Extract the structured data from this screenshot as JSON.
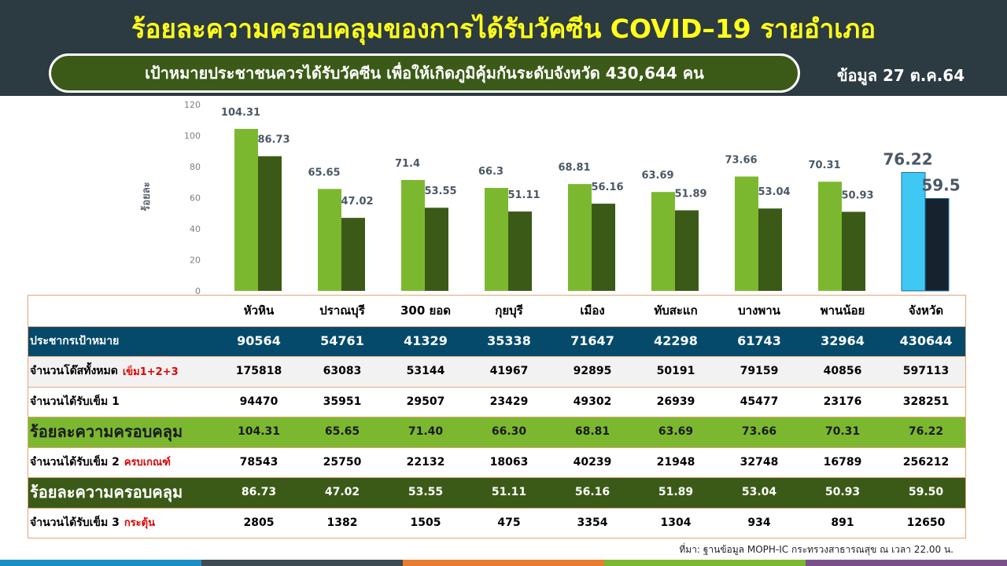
{
  "header": {
    "title": "ร้อยละความครอบคลุมของการได้รับวัคซีน COVID–19 รายอำเภอ",
    "target": "เป้าหมายประชาชนควรได้รับวัคซีน  เพื่อให้เกิดภูมิคุ้มกันระดับจังหวัด 430,644 คน",
    "date": "ข้อมูล 27 ต.ค.64"
  },
  "chart_data": {
    "type": "bar",
    "ylabel": "ร้อยละ",
    "categories": [
      "หัวหิน",
      "ปราณบุรี",
      "300  ยอด",
      "กุยบุรี",
      "เมือง",
      "ทับสะแก",
      "บางพาน",
      "พานน้อย",
      "จังหวัด"
    ],
    "ylim": [
      0,
      120
    ],
    "yticks": [
      0,
      20,
      40,
      60,
      80,
      100,
      120
    ],
    "series": [
      {
        "colors": [
          "#7cb82f",
          "#7cb82f",
          "#7cb82f",
          "#7cb82f",
          "#7cb82f",
          "#7cb82f",
          "#7cb82f",
          "#7cb82f",
          "#40c8f4"
        ],
        "values": [
          104.31,
          65.65,
          71.4,
          66.3,
          68.81,
          63.69,
          73.66,
          70.31,
          76.22
        ]
      },
      {
        "colors": [
          "#3b5a17",
          "#3b5a17",
          "#3b5a17",
          "#3b5a17",
          "#3b5a17",
          "#3b5a17",
          "#3b5a17",
          "#3b5a17",
          "#16222e"
        ],
        "values": [
          86.73,
          47.02,
          53.55,
          51.11,
          56.16,
          51.89,
          53.04,
          50.93,
          59.5
        ]
      }
    ]
  },
  "table": {
    "rows": [
      {
        "label": "ประชากรเป้าหมาย",
        "cells": [
          "90564",
          "54761",
          "41329",
          "35338",
          "71647",
          "42298",
          "61743",
          "32964",
          "430644"
        ]
      },
      {
        "label": "จำนวนโด๊สทั้งหมด",
        "note": "เข็ม1+2+3",
        "cells": [
          "175818",
          "63083",
          "53144",
          "41967",
          "92895",
          "50191",
          "79159",
          "40856",
          "597113"
        ]
      },
      {
        "label": "จำนวนได้รับเข็ม 1",
        "cells": [
          "94470",
          "35951",
          "29507",
          "23429",
          "49302",
          "26939",
          "45477",
          "23176",
          "328251"
        ]
      },
      {
        "label": "ร้อยละความครอบคลุม",
        "cells": [
          "104.31",
          "65.65",
          "71.40",
          "66.30",
          "68.81",
          "63.69",
          "73.66",
          "70.31",
          "76.22"
        ]
      },
      {
        "label": "จำนวนได้รับเข็ม 2",
        "note": "ครบเกณฑ์",
        "cells": [
          "78543",
          "25750",
          "22132",
          "18063",
          "40239",
          "21948",
          "32748",
          "16789",
          "256212"
        ]
      },
      {
        "label": "ร้อยละความครอบคลุม",
        "cells": [
          "86.73",
          "47.02",
          "53.55",
          "51.11",
          "56.16",
          "51.89",
          "53.04",
          "50.93",
          "59.50"
        ]
      },
      {
        "label": "จำนวนได้รับเข็ม 3",
        "note": "กระตุ้น",
        "cells": [
          "2805",
          "1382",
          "1505",
          "475",
          "3354",
          "1304",
          "934",
          "891",
          "12650"
        ]
      }
    ]
  },
  "footer": {
    "source": "ที่มา: ฐานข้อมูล MOPH-IC กระทรวงสาธารณสุข ณ เวลา 22.00 น."
  }
}
